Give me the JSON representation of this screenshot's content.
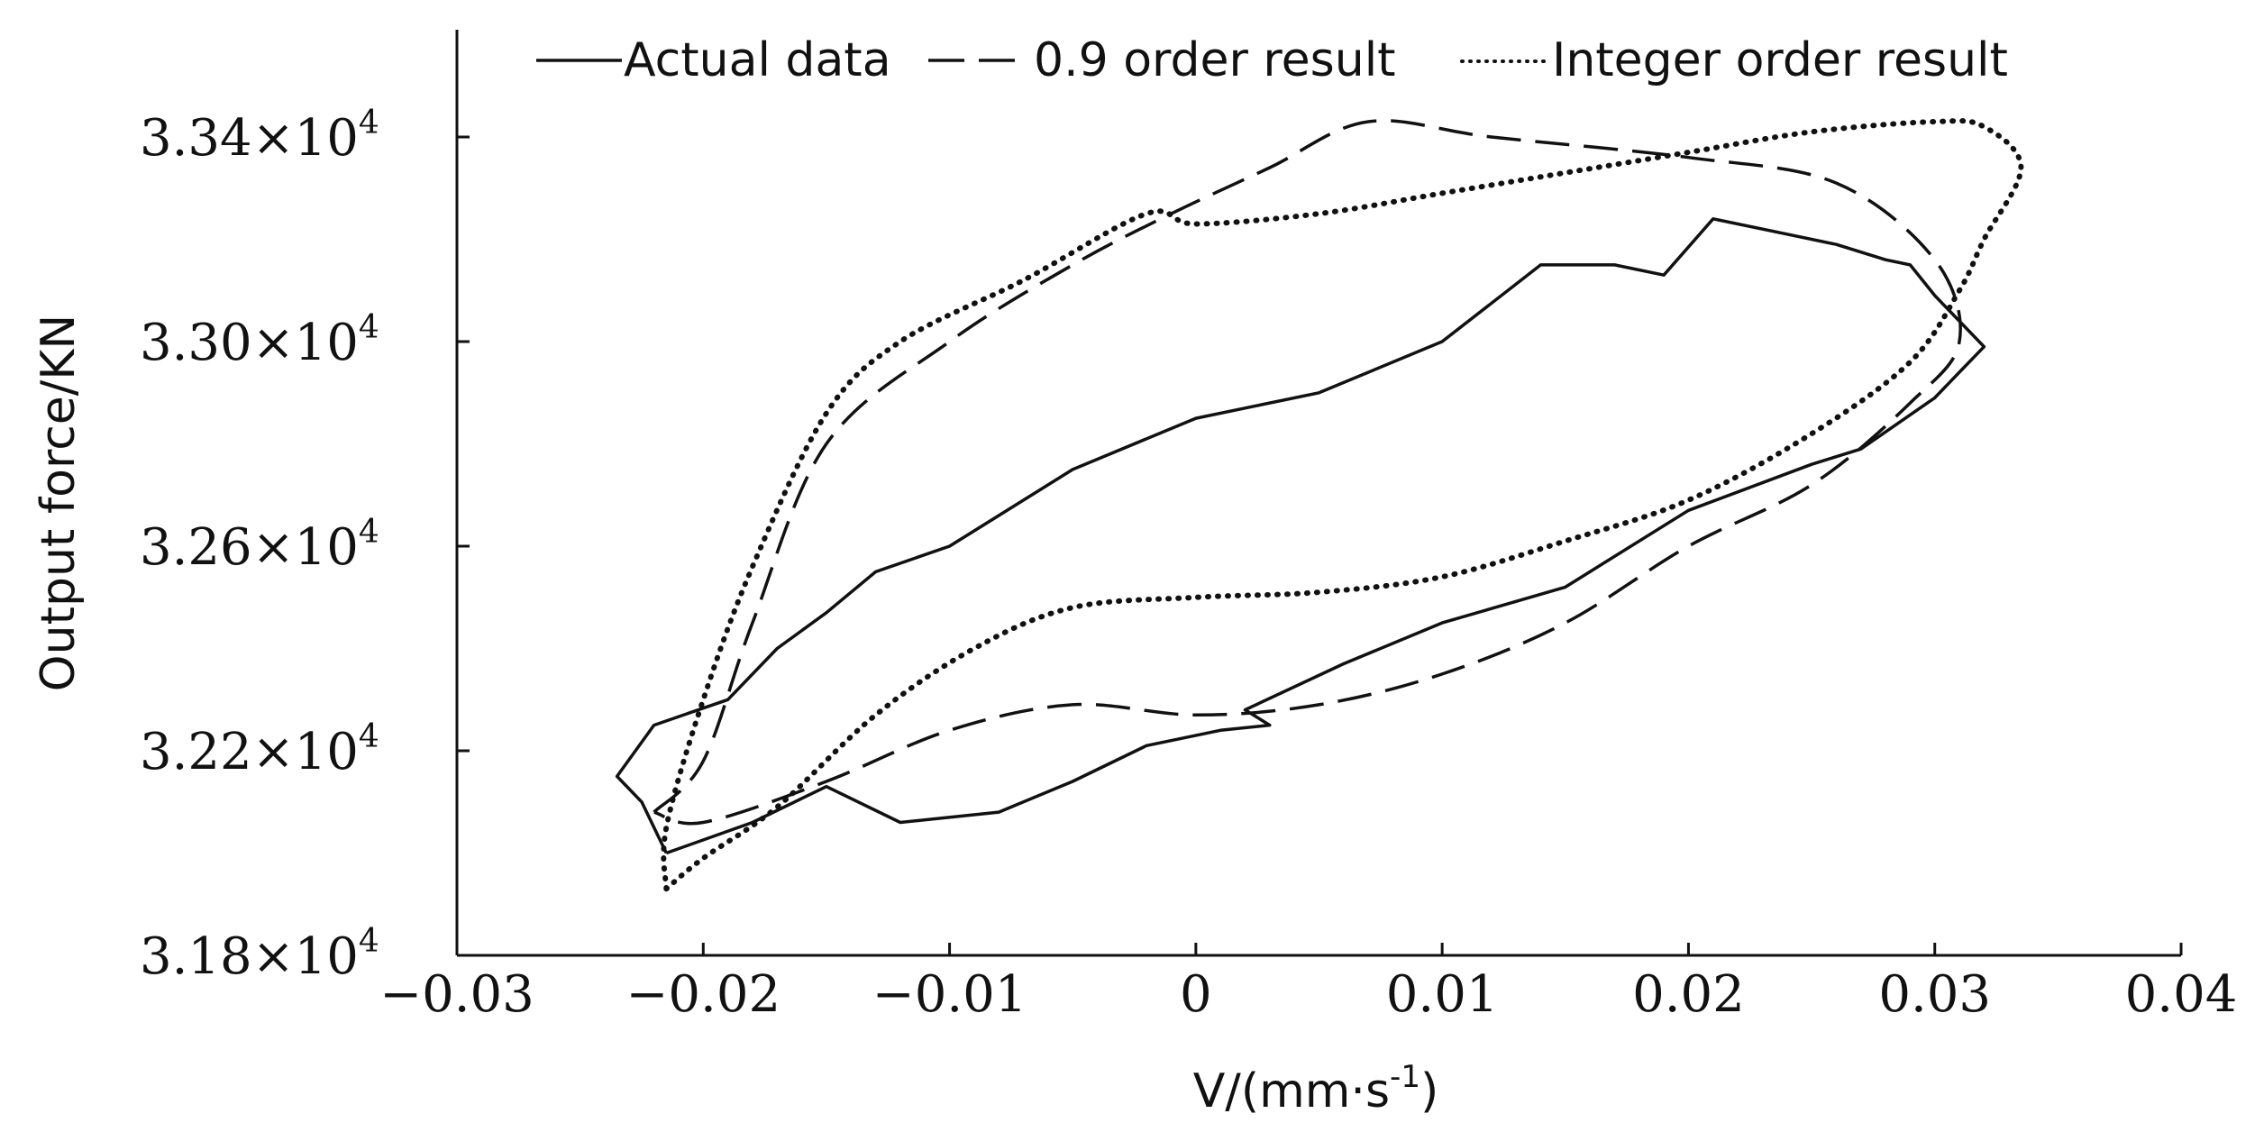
{
  "chart_data": {
    "type": "line",
    "title": "",
    "xlabel": "V/(mm·s",
    "xlabel_sup": "-1",
    "xlabel_close": ")",
    "ylabel": "Output force/KN",
    "xlim": [
      -0.03,
      0.04
    ],
    "ylim": [
      31800,
      33600
    ],
    "x_ticks": [
      {
        "value": -0.03,
        "label": "−0.03"
      },
      {
        "value": -0.02,
        "label": "−0.02"
      },
      {
        "value": -0.01,
        "label": "−0.01"
      },
      {
        "value": 0,
        "label": "0"
      },
      {
        "value": 0.01,
        "label": "0.01"
      },
      {
        "value": 0.02,
        "label": "0.02"
      },
      {
        "value": 0.03,
        "label": "0.03"
      },
      {
        "value": 0.04,
        "label": "0.04"
      }
    ],
    "y_ticks": [
      {
        "value": 31800,
        "mantissa": "3.18",
        "exponent": "4"
      },
      {
        "value": 32200,
        "mantissa": "3.22",
        "exponent": "4"
      },
      {
        "value": 32600,
        "mantissa": "3.26",
        "exponent": "4"
      },
      {
        "value": 33000,
        "mantissa": "3.30",
        "exponent": "4"
      },
      {
        "value": 33400,
        "mantissa": "3.34",
        "exponent": "4"
      }
    ],
    "y_tick_times": "×10",
    "legend_position": "top",
    "series": [
      {
        "name": "Actual data",
        "style": "solid",
        "points": [
          [
            -0.0215,
            32000
          ],
          [
            -0.018,
            32060
          ],
          [
            -0.015,
            32130
          ],
          [
            -0.012,
            32060
          ],
          [
            -0.008,
            32080
          ],
          [
            -0.005,
            32140
          ],
          [
            -0.002,
            32210
          ],
          [
            0.001,
            32240
          ],
          [
            0.003,
            32250
          ],
          [
            0.002,
            32280
          ],
          [
            0.006,
            32370
          ],
          [
            0.01,
            32450
          ],
          [
            0.015,
            32520
          ],
          [
            0.02,
            32670
          ],
          [
            0.025,
            32760
          ],
          [
            0.027,
            32790
          ],
          [
            0.03,
            32890
          ],
          [
            0.031,
            32940
          ],
          [
            0.032,
            32990
          ],
          [
            0.03,
            33090
          ],
          [
            0.029,
            33150
          ],
          [
            0.028,
            33160
          ],
          [
            0.026,
            33190
          ],
          [
            0.024,
            33210
          ],
          [
            0.021,
            33240
          ],
          [
            0.019,
            33130
          ],
          [
            0.017,
            33150
          ],
          [
            0.014,
            33150
          ],
          [
            0.01,
            33000
          ],
          [
            0.005,
            32900
          ],
          [
            0.0,
            32850
          ],
          [
            -0.005,
            32750
          ],
          [
            -0.01,
            32600
          ],
          [
            -0.013,
            32550
          ],
          [
            -0.015,
            32470
          ],
          [
            -0.017,
            32400
          ],
          [
            -0.019,
            32300
          ],
          [
            -0.022,
            32250
          ],
          [
            -0.0235,
            32150
          ],
          [
            -0.0225,
            32100
          ],
          [
            -0.0215,
            32000
          ]
        ]
      },
      {
        "name": "0.9 order result",
        "style": "dashed",
        "points": [
          [
            -0.022,
            32080
          ],
          [
            -0.02,
            32180
          ],
          [
            -0.018,
            32450
          ],
          [
            -0.015,
            32800
          ],
          [
            -0.01,
            33000
          ],
          [
            -0.005,
            33150
          ],
          [
            -0.001,
            33250
          ],
          [
            0.003,
            33340
          ],
          [
            0.007,
            33430
          ],
          [
            0.012,
            33400
          ],
          [
            0.02,
            33360
          ],
          [
            0.026,
            33310
          ],
          [
            0.03,
            33160
          ],
          [
            0.031,
            33000
          ],
          [
            0.029,
            32880
          ],
          [
            0.025,
            32720
          ],
          [
            0.02,
            32600
          ],
          [
            0.015,
            32450
          ],
          [
            0.01,
            32350
          ],
          [
            0.005,
            32290
          ],
          [
            0.0,
            32270
          ],
          [
            -0.005,
            32290
          ],
          [
            -0.01,
            32240
          ],
          [
            -0.015,
            32140
          ],
          [
            -0.02,
            32060
          ],
          [
            -0.022,
            32080
          ]
        ]
      },
      {
        "name": "Integer order result",
        "style": "dotted",
        "points": [
          [
            -0.0215,
            31930
          ],
          [
            -0.02,
            31990
          ],
          [
            -0.017,
            32090
          ],
          [
            -0.013,
            32270
          ],
          [
            -0.009,
            32400
          ],
          [
            -0.005,
            32480
          ],
          [
            0.0,
            32500
          ],
          [
            0.005,
            32510
          ],
          [
            0.01,
            32540
          ],
          [
            0.015,
            32610
          ],
          [
            0.02,
            32690
          ],
          [
            0.025,
            32820
          ],
          [
            0.029,
            32960
          ],
          [
            0.031,
            33100
          ],
          [
            0.032,
            33200
          ],
          [
            0.0335,
            33340
          ],
          [
            0.032,
            33420
          ],
          [
            0.03,
            33430
          ],
          [
            0.025,
            33410
          ],
          [
            0.02,
            33370
          ],
          [
            0.015,
            33330
          ],
          [
            0.01,
            33290
          ],
          [
            0.005,
            33250
          ],
          [
            0.0,
            33230
          ],
          [
            -0.002,
            33250
          ],
          [
            -0.007,
            33120
          ],
          [
            -0.012,
            33000
          ],
          [
            -0.015,
            32860
          ],
          [
            -0.018,
            32560
          ],
          [
            -0.02,
            32300
          ],
          [
            -0.0215,
            32050
          ],
          [
            -0.0215,
            31930
          ]
        ]
      }
    ]
  }
}
